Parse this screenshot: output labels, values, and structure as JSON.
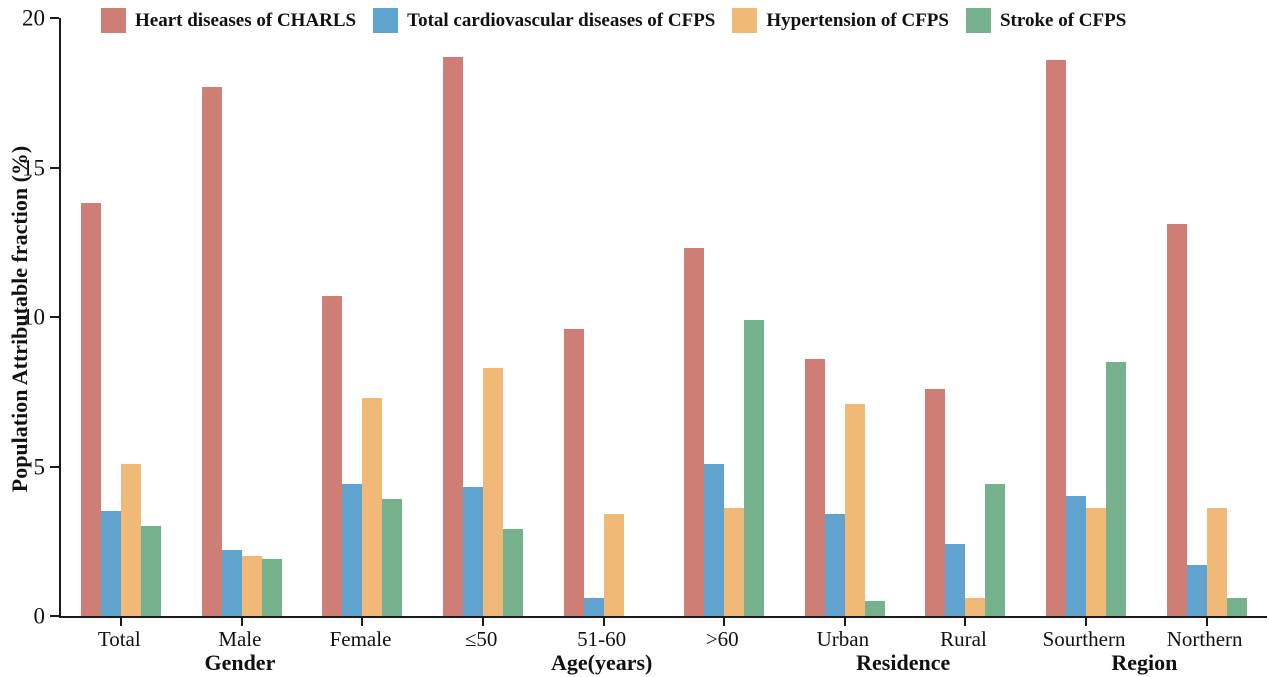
{
  "chart_data": {
    "type": "bar",
    "title": "",
    "xlabel": "",
    "ylabel": "Population Attributable fraction (%)",
    "ylim": [
      0,
      20
    ],
    "yticks": [
      0,
      5,
      10,
      15,
      20
    ],
    "grid": false,
    "legend_position": "top",
    "categories": [
      "Total",
      "Male",
      "Female",
      "≤50",
      "51-60",
      ">60",
      "Urban",
      "Rural",
      "Sourthern",
      "Northern"
    ],
    "category_groups": [
      {
        "label": "Gender",
        "span": [
          "Total",
          "Male",
          "Female"
        ]
      },
      {
        "label": "Age(years)",
        "span": [
          "≤50",
          "51-60",
          ">60"
        ]
      },
      {
        "label": "Residence",
        "span": [
          "Urban",
          "Rural"
        ]
      },
      {
        "label": "Region",
        "span": [
          "Sourthern",
          "Northern"
        ]
      }
    ],
    "series": [
      {
        "name": "Heart diseases of CHARLS",
        "color": "#CE7E75",
        "values": [
          13.8,
          17.7,
          10.7,
          18.7,
          9.6,
          12.3,
          8.6,
          7.6,
          18.6,
          13.1
        ]
      },
      {
        "name": "Total cardiovascular diseases of CFPS",
        "color": "#5FA3CE",
        "values": [
          3.5,
          2.2,
          4.4,
          4.3,
          0.6,
          5.1,
          3.4,
          2.4,
          4.0,
          1.7
        ]
      },
      {
        "name": "Hypertension of CFPS",
        "color": "#F0B978",
        "values": [
          5.1,
          2.0,
          7.3,
          8.3,
          3.4,
          3.6,
          7.1,
          0.6,
          3.6,
          3.6
        ]
      },
      {
        "name": "Stroke of CFPS",
        "color": "#74B18C",
        "values": [
          3.0,
          1.9,
          3.9,
          2.9,
          0,
          9.9,
          0.5,
          4.4,
          8.5,
          0.6
        ]
      }
    ]
  }
}
